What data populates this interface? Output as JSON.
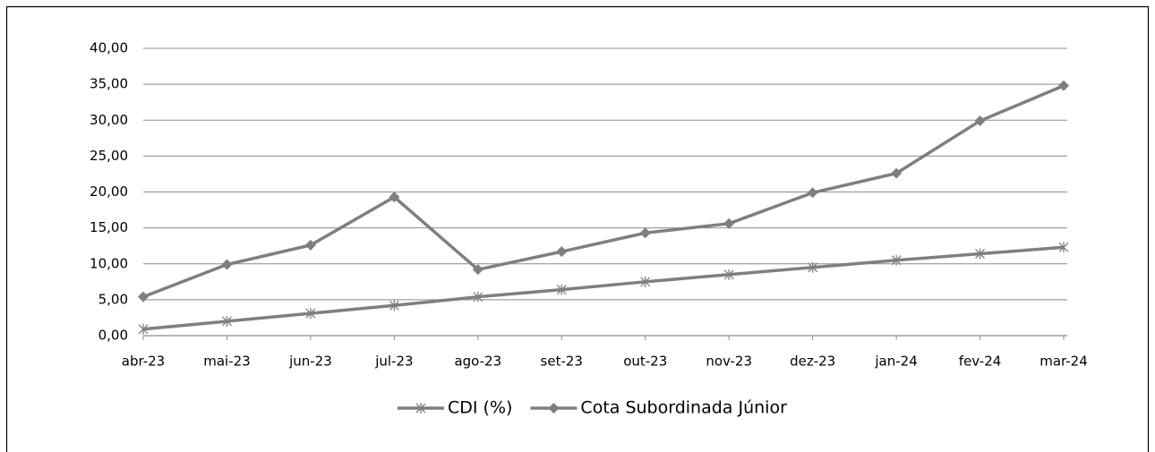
{
  "chart_data": {
    "type": "line",
    "categories": [
      "abr-23",
      "mai-23",
      "jun-23",
      "jul-23",
      "ago-23",
      "set-23",
      "out-23",
      "nov-23",
      "dez-23",
      "jan-24",
      "fev-24",
      "mar-24"
    ],
    "series": [
      {
        "name": "CDI (%)",
        "color": "#7f7f7f",
        "marker": "star",
        "values": [
          0.9,
          2.0,
          3.1,
          4.2,
          5.4,
          6.4,
          7.5,
          8.5,
          9.5,
          10.5,
          11.4,
          12.3
        ]
      },
      {
        "name": "Cota Subordinada Júnior",
        "color": "#7f7f7f",
        "marker": "diamond",
        "values": [
          5.4,
          9.9,
          12.6,
          19.3,
          9.2,
          11.7,
          14.3,
          15.6,
          19.9,
          22.6,
          29.9,
          34.8
        ]
      }
    ],
    "ylim": [
      0,
      40
    ],
    "yticks": [
      {
        "value": 0,
        "label": "0,00"
      },
      {
        "value": 5,
        "label": "5,00"
      },
      {
        "value": 10,
        "label": "10,00"
      },
      {
        "value": 15,
        "label": "15,00"
      },
      {
        "value": 20,
        "label": "20,00"
      },
      {
        "value": 25,
        "label": "25,00"
      },
      {
        "value": 30,
        "label": "30,00"
      },
      {
        "value": 35,
        "label": "35,00"
      },
      {
        "value": 40,
        "label": "40,00"
      }
    ],
    "grid": true,
    "legend": "bottom"
  }
}
